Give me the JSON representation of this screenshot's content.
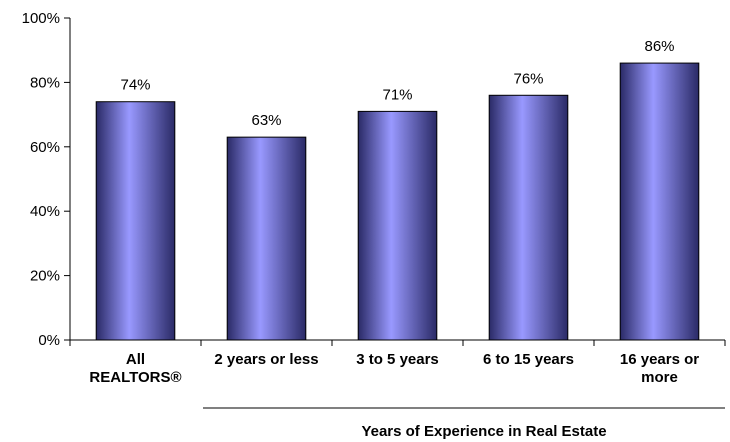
{
  "chart_data": {
    "type": "bar",
    "categories": [
      [
        "All",
        "REALTORS®"
      ],
      [
        "2 years or less"
      ],
      [
        "3 to 5 years"
      ],
      [
        "6 to 15 years"
      ],
      [
        "16 years or",
        "more"
      ]
    ],
    "values": [
      74,
      63,
      71,
      76,
      86
    ],
    "data_labels": [
      "74%",
      "63%",
      "71%",
      "76%",
      "86%"
    ],
    "y_tick_labels": [
      "0%",
      "20%",
      "40%",
      "60%",
      "80%",
      "100%"
    ],
    "y_ticks": [
      0,
      20,
      40,
      60,
      80,
      100
    ],
    "ylim": [
      0,
      100
    ],
    "xlabel": "Years of Experience in Real Estate",
    "ylabel": "",
    "title": "",
    "grid": false,
    "legend": "none",
    "bar_color_light": "#9999ff",
    "bar_color_dark": "#2a2a66",
    "bar_stroke": "#000000"
  }
}
